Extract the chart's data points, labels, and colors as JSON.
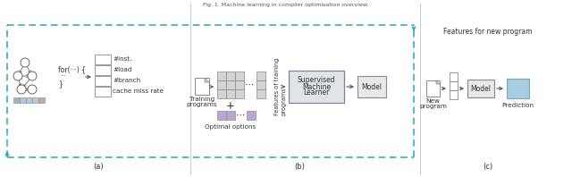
{
  "fig_width": 6.4,
  "fig_height": 1.98,
  "dpi": 100,
  "bg_color": "#ffffff",
  "dash_color": "#2aa8b5",
  "text_color": "#333333",
  "edge_color": "#888888",
  "grid_color": "#cccccc",
  "purple_color": "#b8a8cc",
  "blue_color": "#a8cce0",
  "font_size": 5.5,
  "label_a": "(a)",
  "label_b": "(b)",
  "label_c": "(c)"
}
